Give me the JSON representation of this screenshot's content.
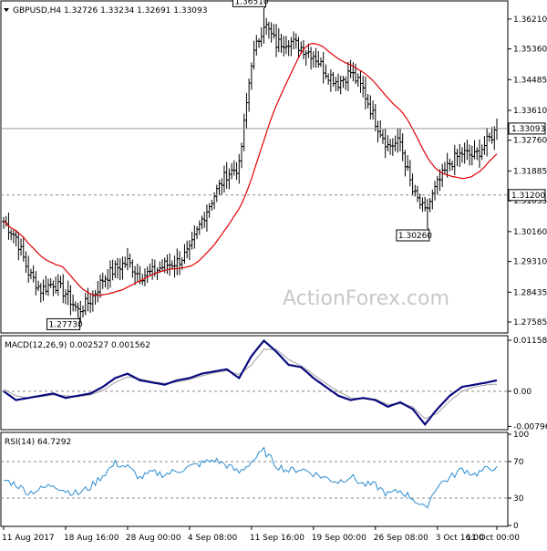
{
  "chart_data": [
    {
      "type": "ohlc",
      "header": "GBPUSD,H4  1.32726 1.33234 1.32691 1.33093",
      "ylim": [
        1.273,
        1.367
      ],
      "y_ticks": [
        "1.36210",
        "1.35360",
        "1.34485",
        "1.33610",
        "1.32760",
        "1.31885",
        "1.31035",
        "1.30160",
        "1.29310",
        "1.28435",
        "1.27585"
      ],
      "y_tick_values": [
        1.3621,
        1.3536,
        1.34485,
        1.3361,
        1.3276,
        1.31885,
        1.31035,
        1.3016,
        1.2931,
        1.28435,
        1.27585
      ],
      "current_price": {
        "label": "1.33093",
        "value": 1.33093
      },
      "support_level": {
        "label": "1.31200",
        "value": 1.312
      },
      "annotations": [
        {
          "label": "1.27730",
          "value": 1.2773,
          "bar": 30
        },
        {
          "label": "1.36510",
          "value": 1.3651,
          "bar": 105
        },
        {
          "label": "1.30260",
          "value": 1.3026,
          "bar": 171
        }
      ],
      "watermark": "ActionForex.com",
      "close_anchors": [
        [
          0,
          1.3045
        ],
        [
          5,
          1.3
        ],
        [
          10,
          1.29
        ],
        [
          15,
          1.285
        ],
        [
          20,
          1.287
        ],
        [
          25,
          1.284
        ],
        [
          30,
          1.279
        ],
        [
          35,
          1.282
        ],
        [
          40,
          1.288
        ],
        [
          45,
          1.291
        ],
        [
          50,
          1.293
        ],
        [
          55,
          1.289
        ],
        [
          60,
          1.29
        ],
        [
          65,
          1.292
        ],
        [
          70,
          1.293
        ],
        [
          75,
          1.296
        ],
        [
          80,
          1.305
        ],
        [
          85,
          1.312
        ],
        [
          90,
          1.318
        ],
        [
          95,
          1.32
        ],
        [
          100,
          1.35
        ],
        [
          105,
          1.361
        ],
        [
          110,
          1.355
        ],
        [
          115,
          1.356
        ],
        [
          120,
          1.354
        ],
        [
          125,
          1.352
        ],
        [
          130,
          1.347
        ],
        [
          135,
          1.344
        ],
        [
          140,
          1.347
        ],
        [
          145,
          1.342
        ],
        [
          150,
          1.333
        ],
        [
          155,
          1.326
        ],
        [
          160,
          1.327
        ],
        [
          165,
          1.313
        ],
        [
          170,
          1.307
        ],
        [
          175,
          1.315
        ],
        [
          180,
          1.321
        ],
        [
          185,
          1.324
        ],
        [
          190,
          1.323
        ],
        [
          195,
          1.327
        ],
        [
          199,
          1.3309
        ]
      ],
      "x_labels": [
        "11 Aug 2017",
        "18 Aug 16:00",
        "28 Aug 00:00",
        "4 Sep 08:00",
        "11 Sep 16:00",
        "19 Sep 00:00",
        "26 Sep 08:00",
        "3 Oct 16:00",
        "11 Oct 00:00"
      ],
      "x_label_bars": [
        0,
        25,
        50,
        75,
        100,
        125,
        150,
        175,
        199
      ]
    },
    {
      "type": "line",
      "header": "MACD(12,26,9) 0.002527 0.001562",
      "ylim": [
        -0.0085,
        0.0122
      ],
      "y_ticks": [
        "0.011588",
        "0.00",
        "-0.007961"
      ],
      "y_tick_values": [
        0.011588,
        0.0,
        -0.007961
      ],
      "macd_anchors": [
        [
          0,
          0.0
        ],
        [
          5,
          -0.002
        ],
        [
          10,
          -0.0015
        ],
        [
          15,
          -0.001
        ],
        [
          20,
          -0.0005
        ],
        [
          25,
          -0.0015
        ],
        [
          30,
          -0.001
        ],
        [
          35,
          -0.0005
        ],
        [
          40,
          0.001
        ],
        [
          45,
          0.003
        ],
        [
          50,
          0.004
        ],
        [
          55,
          0.0025
        ],
        [
          60,
          0.002
        ],
        [
          65,
          0.0015
        ],
        [
          70,
          0.0025
        ],
        [
          75,
          0.003
        ],
        [
          80,
          0.004
        ],
        [
          85,
          0.0045
        ],
        [
          90,
          0.005
        ],
        [
          95,
          0.003
        ],
        [
          100,
          0.008
        ],
        [
          105,
          0.0115
        ],
        [
          110,
          0.009
        ],
        [
          115,
          0.006
        ],
        [
          120,
          0.0055
        ],
        [
          125,
          0.003
        ],
        [
          130,
          0.001
        ],
        [
          135,
          -0.001
        ],
        [
          140,
          -0.002
        ],
        [
          145,
          -0.0015
        ],
        [
          150,
          -0.002
        ],
        [
          155,
          -0.0035
        ],
        [
          160,
          -0.0025
        ],
        [
          165,
          -0.004
        ],
        [
          170,
          -0.0075
        ],
        [
          175,
          -0.004
        ],
        [
          180,
          -0.001
        ],
        [
          185,
          0.001
        ],
        [
          190,
          0.0015
        ],
        [
          195,
          0.002
        ],
        [
          199,
          0.0025
        ]
      ],
      "signal_anchors": [
        [
          0,
          0.0005
        ],
        [
          5,
          -0.001
        ],
        [
          10,
          -0.0015
        ],
        [
          15,
          -0.0012
        ],
        [
          20,
          -0.0008
        ],
        [
          25,
          -0.001
        ],
        [
          30,
          -0.0012
        ],
        [
          35,
          -0.0008
        ],
        [
          40,
          0.0002
        ],
        [
          45,
          0.002
        ],
        [
          50,
          0.0033
        ],
        [
          55,
          0.0028
        ],
        [
          60,
          0.0022
        ],
        [
          65,
          0.0018
        ],
        [
          70,
          0.0021
        ],
        [
          75,
          0.0027
        ],
        [
          80,
          0.0035
        ],
        [
          85,
          0.0042
        ],
        [
          90,
          0.0047
        ],
        [
          95,
          0.0038
        ],
        [
          100,
          0.006
        ],
        [
          105,
          0.0095
        ],
        [
          110,
          0.0095
        ],
        [
          115,
          0.0072
        ],
        [
          120,
          0.0058
        ],
        [
          125,
          0.0038
        ],
        [
          130,
          0.0018
        ],
        [
          135,
          0.0
        ],
        [
          140,
          -0.0015
        ],
        [
          145,
          -0.0017
        ],
        [
          150,
          -0.0018
        ],
        [
          155,
          -0.003
        ],
        [
          160,
          -0.0028
        ],
        [
          165,
          -0.0035
        ],
        [
          170,
          -0.0062
        ],
        [
          175,
          -0.005
        ],
        [
          180,
          -0.0022
        ],
        [
          185,
          0.0
        ],
        [
          190,
          0.001
        ],
        [
          195,
          0.0015
        ],
        [
          199,
          0.0016
        ]
      ],
      "macd_value": 0.002527,
      "signal_value": 0.001562
    },
    {
      "type": "line",
      "header": "RSI(14) 64.7292",
      "ylim": [
        0,
        100
      ],
      "y_ticks": [
        "100",
        "70",
        "30",
        "0"
      ],
      "y_tick_values": [
        100,
        70,
        30,
        0
      ],
      "rsi_anchors": [
        [
          0,
          50
        ],
        [
          5,
          45
        ],
        [
          10,
          36
        ],
        [
          15,
          40
        ],
        [
          20,
          45
        ],
        [
          25,
          38
        ],
        [
          30,
          35
        ],
        [
          35,
          42
        ],
        [
          40,
          55
        ],
        [
          45,
          68
        ],
        [
          50,
          64
        ],
        [
          55,
          52
        ],
        [
          60,
          58
        ],
        [
          65,
          56
        ],
        [
          70,
          60
        ],
        [
          75,
          64
        ],
        [
          80,
          68
        ],
        [
          85,
          72
        ],
        [
          90,
          66
        ],
        [
          95,
          58
        ],
        [
          100,
          70
        ],
        [
          105,
          82
        ],
        [
          110,
          66
        ],
        [
          115,
          60
        ],
        [
          120,
          62
        ],
        [
          125,
          57
        ],
        [
          130,
          52
        ],
        [
          135,
          48
        ],
        [
          140,
          54
        ],
        [
          145,
          45
        ],
        [
          150,
          44
        ],
        [
          155,
          34
        ],
        [
          160,
          38
        ],
        [
          165,
          30
        ],
        [
          170,
          18
        ],
        [
          175,
          44
        ],
        [
          180,
          52
        ],
        [
          185,
          62
        ],
        [
          190,
          56
        ],
        [
          195,
          62
        ],
        [
          199,
          64.7
        ]
      ],
      "rsi_value": 64.7292
    }
  ]
}
